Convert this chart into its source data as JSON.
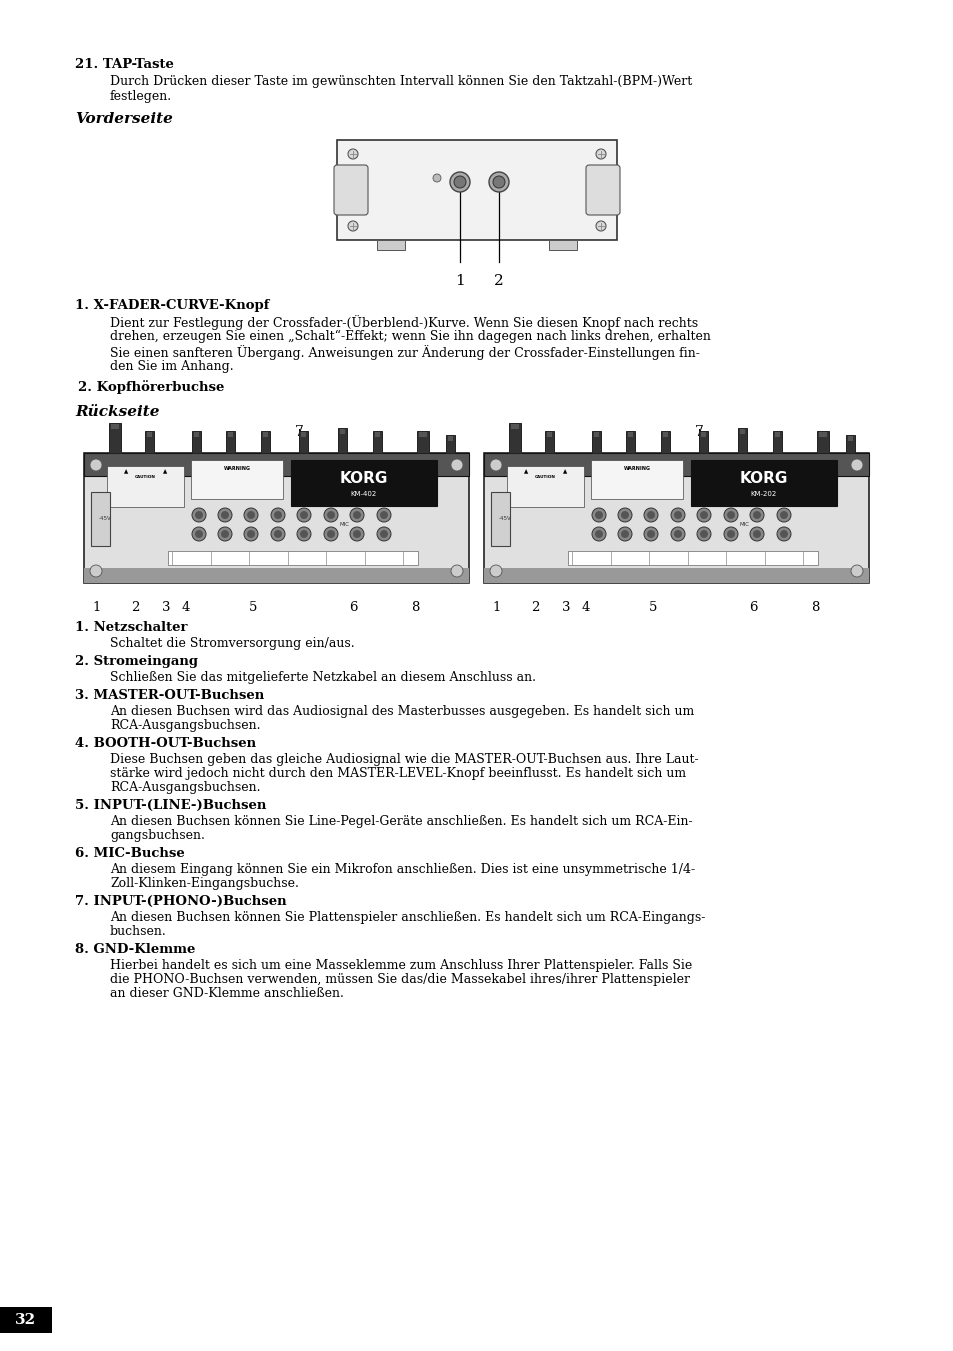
{
  "bg_color": "#ffffff",
  "page_number": "32",
  "title_tap": "21. TAP-Taste",
  "body_tap_line1": "Durch Drücken dieser Taste im gewünschten Intervall können Sie den Taktzahl-(BPM-)Wert",
  "body_tap_line2": "festlegen.",
  "section_vorderseite": "Vorderseite",
  "item1_bold": "1. X-FADER-CURVE-Knopf",
  "item1_lines": [
    "Dient zur Festlegung der Crossfader-(Überblend-)Kurve. Wenn Sie diesen Knopf nach rechts",
    "drehen, erzeugen Sie einen „Schalt“-Effekt; wenn Sie ihn dagegen nach links drehen, erhalten",
    "Sie einen sanfteren Übergang. Anweisungen zur Änderung der Crossfader-Einstellungen fin-",
    "den Sie im Anhang."
  ],
  "item2_bold": "2. Kopfhörerbuchse",
  "section_rueckseite": "Rückseite",
  "items": [
    {
      "bold": "1. Netzschalter",
      "lines": [
        "Schaltet die Stromversorgung ein/aus."
      ]
    },
    {
      "bold": "2. Stromeingang",
      "lines": [
        "Schließen Sie das mitgelieferte Netzkabel an diesem Anschluss an."
      ]
    },
    {
      "bold": "3. MASTER-OUT-Buchsen",
      "lines": [
        "An diesen Buchsen wird das Audiosignal des Masterbusses ausgegeben. Es handelt sich um",
        "RCA-Ausgangsbuchsen."
      ]
    },
    {
      "bold": "4. BOOTH-OUT-Buchsen",
      "lines": [
        "Diese Buchsen geben das gleiche Audiosignal wie die MASTER-OUT-Buchsen aus. Ihre Laut-",
        "stärke wird jedoch nicht durch den MASTER-LEVEL-Knopf beeinflusst. Es handelt sich um",
        "RCA-Ausgangsbuchsen."
      ]
    },
    {
      "bold": "5. INPUT-(LINE-)Buchsen",
      "lines": [
        "An diesen Buchsen können Sie Line-Pegel-Geräte anschließen. Es handelt sich um RCA-Ein-",
        "gangsbuchsen."
      ]
    },
    {
      "bold": "6. MIC-Buchse",
      "lines": [
        "An diesem Eingang können Sie ein Mikrofon anschließen. Dies ist eine unsymmetrische 1/4-",
        "Zoll-Klinken-Eingangsbuchse."
      ]
    },
    {
      "bold": "7. INPUT-(PHONO-)Buchsen",
      "lines": [
        "An diesen Buchsen können Sie Plattenspieler anschließen. Es handelt sich um RCA-Eingangs-",
        "buchsen."
      ]
    },
    {
      "bold": "8. GND-Klemme",
      "lines": [
        "Hierbei handelt es sich um eine Masseklemme zum Anschluss Ihrer Plattenspieler. Falls Sie",
        "die PHONO-Buchsen verwenden, müssen Sie das/die Massekabel ihres/ihrer Plattenspieler",
        "an dieser GND-Klemme anschließen."
      ]
    }
  ]
}
